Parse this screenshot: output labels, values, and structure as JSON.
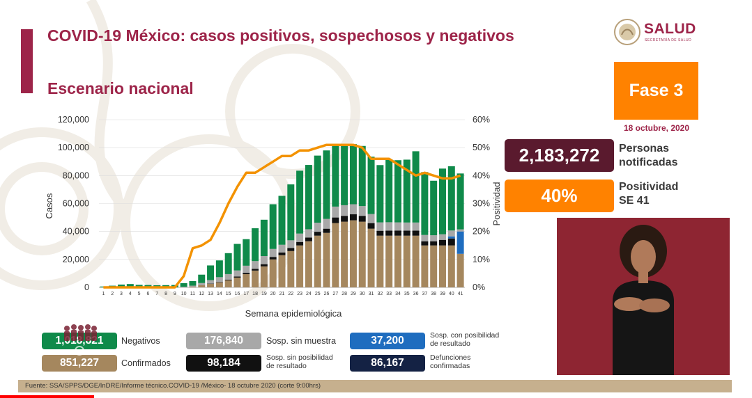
{
  "header": {
    "title": "COVID-19 México: casos positivos, sospechosos y negativos",
    "subtitle": "Escenario nacional",
    "logo_text": "SALUD",
    "logo_sub": "SECRETARÍA DE SALUD"
  },
  "phase": {
    "label": "Fase 3",
    "date": "18 octubre, 2020"
  },
  "kpis": [
    {
      "value": "2,183,272",
      "label_line1": "Personas",
      "label_line2": "notificadas",
      "color": "#5a1a2e"
    },
    {
      "value": "40%",
      "label_line1": "Positividad",
      "label_line2": "SE 41",
      "color": "#ff8200"
    }
  ],
  "legend": [
    {
      "value": "1,018,821",
      "label": "Negativos",
      "color": "#0f8a4a"
    },
    {
      "value": "176,840",
      "label": "Sosp. sin muestra",
      "color": "#a8a8a8"
    },
    {
      "value": "37,200",
      "label_line1": "Sosp. con posibilidad",
      "label_line2": "de resultado",
      "color": "#1f6dbf"
    },
    {
      "value": "851,227",
      "label": "Confirmados",
      "color": "#a5875e"
    },
    {
      "value": "98,184",
      "label_line1": "Sosp. sin posibilidad",
      "label_line2": "de resultado",
      "color": "#111111"
    },
    {
      "value": "86,167",
      "label_line1": "Defunciones",
      "label_line2": "confirmadas",
      "color": "#142244"
    }
  ],
  "source": "Fuente: SSA/SPPS/DGE/InDRE/Informe técnico.COVID-19 /México- 18 octubre 2020 (corte 9:00hrs)",
  "video": {
    "progress": 0.125
  },
  "chart_data": {
    "type": "bar",
    "stacked": true,
    "xlabel": "Semana epidemiológica",
    "ylabel": "Casos",
    "y2label": "Positividad",
    "ylim": [
      0,
      120000
    ],
    "y2lim": [
      0,
      60
    ],
    "yticks": [
      "0",
      "20,000",
      "40,000",
      "60,000",
      "80,000",
      "100,000",
      "120,000"
    ],
    "y2ticks": [
      "0%",
      "10%",
      "20%",
      "30%",
      "40%",
      "50%",
      "60%"
    ],
    "categories": [
      "1",
      "2",
      "3",
      "4",
      "5",
      "6",
      "7",
      "8",
      "9",
      "10",
      "11",
      "12",
      "13",
      "14",
      "15",
      "16",
      "17",
      "18",
      "19",
      "20",
      "21",
      "22",
      "23",
      "24",
      "25",
      "26",
      "27",
      "28",
      "29",
      "30",
      "31",
      "32",
      "33",
      "34",
      "35",
      "36",
      "37",
      "38",
      "39",
      "40",
      "41"
    ],
    "series": [
      {
        "name": "Confirmados",
        "color": "#a5875e",
        "values": [
          0,
          0,
          0,
          0,
          0,
          0,
          0,
          0,
          0,
          100,
          500,
          1500,
          2500,
          3500,
          5000,
          7000,
          9500,
          12000,
          15000,
          20000,
          23000,
          26000,
          30000,
          33000,
          37000,
          39000,
          46000,
          47000,
          48000,
          47000,
          42000,
          37000,
          37000,
          37000,
          37000,
          37000,
          30000,
          30000,
          30000,
          30000,
          24000
        ]
      },
      {
        "name": "Sosp. sin posibilidad de resultado",
        "color": "#111111",
        "values": [
          0,
          0,
          0,
          0,
          0,
          0,
          0,
          0,
          0,
          0,
          0,
          100,
          200,
          300,
          500,
          800,
          1000,
          1300,
          1600,
          1800,
          2000,
          2200,
          2500,
          2600,
          2800,
          3000,
          4000,
          4200,
          4300,
          4200,
          4000,
          3500,
          3600,
          3700,
          3600,
          3600,
          3000,
          3000,
          4000,
          5000,
          0
        ]
      },
      {
        "name": "Sosp. con posibilidad de resultado",
        "color": "#1f6dbf",
        "values": [
          0,
          0,
          0,
          0,
          0,
          0,
          0,
          0,
          0,
          0,
          0,
          0,
          0,
          0,
          0,
          0,
          0,
          0,
          0,
          0,
          0,
          0,
          0,
          0,
          0,
          0,
          0,
          0,
          0,
          0,
          0,
          0,
          0,
          0,
          0,
          0,
          0,
          0,
          0,
          1500,
          16000
        ]
      },
      {
        "name": "Sosp. sin muestra",
        "color": "#a8a8a8",
        "values": [
          0,
          0,
          0,
          0,
          0,
          0,
          0,
          0,
          0,
          300,
          700,
          1500,
          2500,
          3500,
          4000,
          4300,
          5000,
          5500,
          5800,
          5700,
          5500,
          5500,
          6000,
          6000,
          6500,
          7000,
          7800,
          7600,
          7200,
          7000,
          6500,
          6000,
          6000,
          5800,
          5800,
          5800,
          4500,
          4300,
          4000,
          4200,
          1500
        ]
      },
      {
        "name": "Negativos",
        "color": "#0f8a4a",
        "values": [
          600,
          1200,
          2000,
          2400,
          1800,
          1700,
          1500,
          1600,
          1700,
          2600,
          3300,
          6000,
          10500,
          12000,
          15000,
          19000,
          19000,
          23500,
          26000,
          32000,
          35000,
          40000,
          45000,
          46000,
          48000,
          49000,
          44000,
          44000,
          43000,
          43000,
          41000,
          41000,
          45000,
          44500,
          45000,
          51000,
          45000,
          39000,
          47000,
          46000,
          40000
        ]
      },
      {
        "name": "Positividad",
        "type": "line",
        "axis": "right",
        "color": "#f39200",
        "values": [
          0,
          0,
          0,
          0,
          0,
          0,
          0,
          0,
          0,
          4,
          14,
          15,
          17,
          23,
          30,
          36,
          41,
          41,
          43,
          45,
          47,
          47,
          49,
          49,
          50,
          51,
          51,
          51,
          51,
          50,
          46,
          46,
          46,
          44,
          42,
          40,
          41,
          40,
          39,
          39,
          40
        ]
      }
    ]
  }
}
